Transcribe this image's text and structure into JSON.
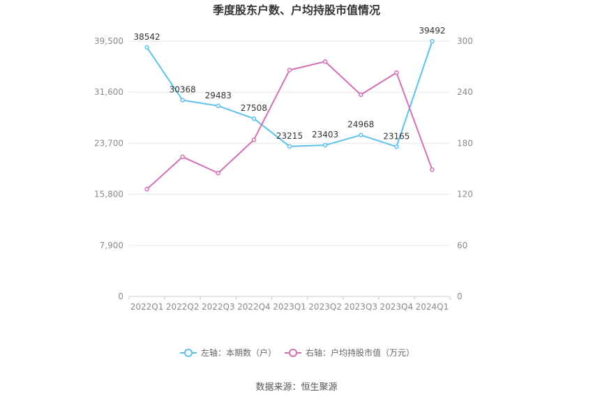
{
  "chart_data": {
    "type": "line",
    "title": "季度股东户数、户均持股市值情况",
    "categories": [
      "2022Q1",
      "2022Q2",
      "2022Q3",
      "2022Q4",
      "2023Q1",
      "2023Q2",
      "2023Q3",
      "2023Q4",
      "2024Q1"
    ],
    "y_left": {
      "ticks": [
        "0",
        "7,900",
        "15,800",
        "23,700",
        "31,600",
        "39,500"
      ],
      "range": [
        0,
        39500
      ]
    },
    "y_right": {
      "ticks": [
        "0",
        "60",
        "120",
        "180",
        "240",
        "300"
      ],
      "range": [
        0,
        300
      ]
    },
    "series": [
      {
        "name": "左轴：本期数（户）",
        "axis": "left",
        "color": "#5bc0ec",
        "values": [
          38542,
          30368,
          29483,
          27508,
          23215,
          23403,
          24968,
          23165,
          39492
        ],
        "labels": [
          "38542",
          "30368",
          "29483",
          "27508",
          "23215",
          "23403",
          "24968",
          "23165",
          "39492"
        ]
      },
      {
        "name": "右轴：户均持股市值（万元）",
        "axis": "right",
        "color": "#d36fb3",
        "values": [
          126,
          164,
          145,
          184,
          266,
          276,
          237,
          263,
          149
        ]
      }
    ],
    "legend_position": "bottom",
    "grid": true
  },
  "source_text": "数据来源：恒生聚源"
}
